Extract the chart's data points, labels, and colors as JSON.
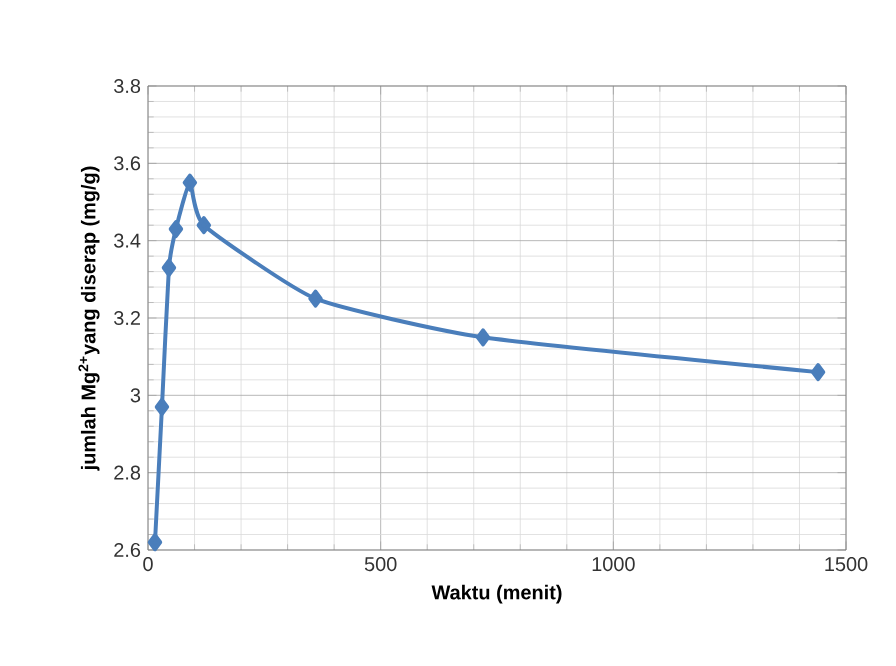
{
  "chart_data": {
    "type": "line",
    "xlabel": "Waktu (menit)",
    "ylabel": "jumlah Mg$^{2+}$yang diserap (mg/g)",
    "series": [
      {
        "color": "#4a7ebb",
        "x": [
          15,
          30,
          45,
          60,
          90,
          120,
          360,
          720,
          1440
        ],
        "values": [
          2.62,
          2.97,
          3.33,
          3.43,
          3.55,
          3.44,
          3.25,
          3.15,
          3.06
        ]
      }
    ],
    "xlim": [
      0,
      1500
    ],
    "xticks": [
      0,
      500,
      1000,
      1500
    ],
    "ylim": [
      2.6,
      3.8
    ],
    "yticks": [
      2.6,
      2.8,
      3,
      3.2,
      3.4,
      3.6,
      3.8
    ],
    "grid": true,
    "marker": "diamond",
    "line_style": "solid"
  }
}
